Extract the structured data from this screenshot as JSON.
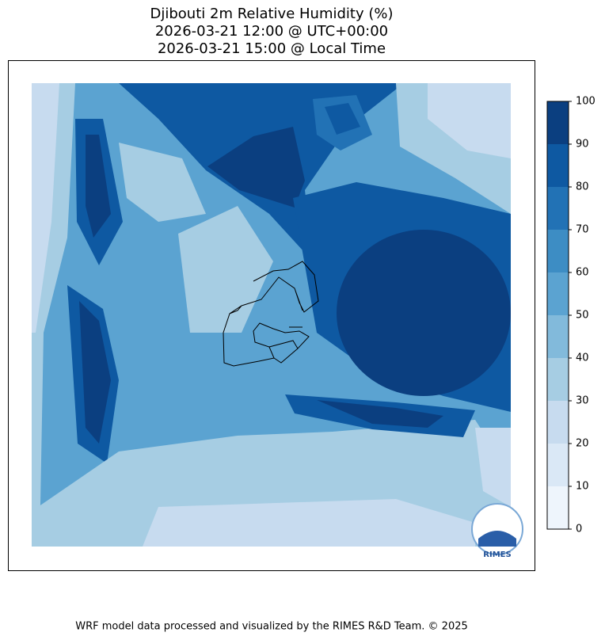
{
  "title": [
    "Djibouti 2m Relative Humidity (%)",
    "2026-03-21 12:00 @ UTC+00:00",
    "2026-03-21 15:00 @ Local Time"
  ],
  "colorbar": {
    "lim": [
      0,
      100
    ],
    "ticks": [
      0,
      10,
      20,
      30,
      40,
      50,
      60,
      70,
      80,
      90,
      100
    ],
    "colors": [
      "#eef5fc",
      "#dae8f6",
      "#c7dbef",
      "#a6cde3",
      "#82badb",
      "#5ba3d1",
      "#3d8dc4",
      "#2272b5",
      "#0e59a2",
      "#0b3f80"
    ]
  },
  "logo": "RIMES",
  "footer": "WRF model data processed and visualized by the RIMES R&D Team. © 2025"
}
